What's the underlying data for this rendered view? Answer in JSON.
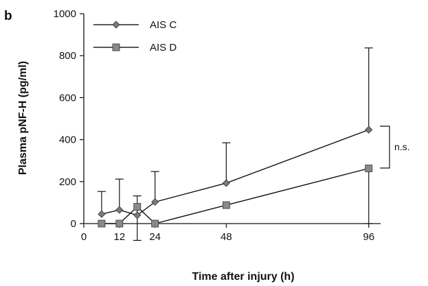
{
  "panel_label": "b",
  "chart_data": {
    "type": "line",
    "title": "",
    "xlabel": "Time after injury (h)",
    "ylabel": "Plasma pNF-H (pg/ml)",
    "xlim": [
      0,
      100
    ],
    "ylim": [
      0,
      1000
    ],
    "xticks": [
      0,
      12,
      24,
      48,
      96
    ],
    "yticks": [
      0,
      200,
      400,
      600,
      800,
      1000
    ],
    "legend_position": "top-left",
    "series": [
      {
        "name": "AIS C",
        "marker": "diamond",
        "color": "#7a7a7a",
        "error_direction": "up",
        "points": [
          {
            "x": 6,
            "y": 45,
            "err": 108
          },
          {
            "x": 12,
            "y": 65,
            "err": 147
          },
          {
            "x": 18,
            "y": 40,
            "err": 92
          },
          {
            "x": 24,
            "y": 103,
            "err": 145
          },
          {
            "x": 48,
            "y": 193,
            "err": 192
          },
          {
            "x": 96,
            "y": 447,
            "err": 390
          }
        ]
      },
      {
        "name": "AIS D",
        "marker": "square",
        "color": "#8a8a8a",
        "error_direction": "down",
        "points": [
          {
            "x": 6,
            "y": 0,
            "err": 0
          },
          {
            "x": 12,
            "y": 0,
            "err": 0
          },
          {
            "x": 18,
            "y": 80,
            "err": 160
          },
          {
            "x": 24,
            "y": 0,
            "err": 0
          },
          {
            "x": 48,
            "y": 88,
            "err": 0
          },
          {
            "x": 96,
            "y": 263,
            "err": 263
          }
        ]
      }
    ],
    "annotation": {
      "text": "n.s."
    }
  }
}
